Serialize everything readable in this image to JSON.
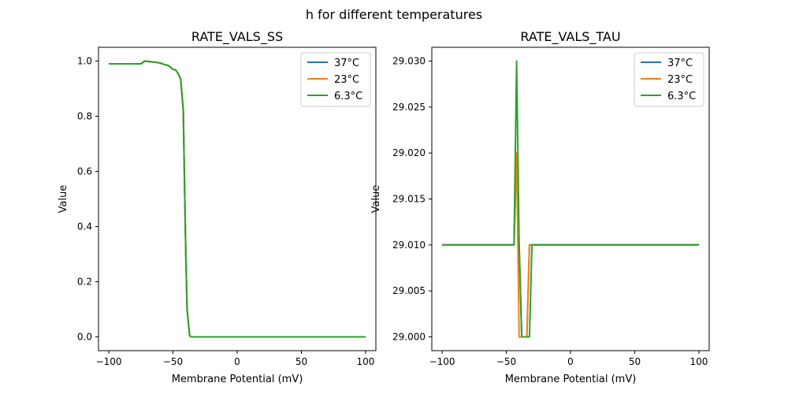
{
  "figure_title": "h for different temperatures",
  "colors": {
    "s37": "#1f77b4",
    "s23": "#ff7f0e",
    "s63": "#2ca02c"
  },
  "chart_data": [
    {
      "type": "line",
      "title": "RATE_VALS_SS",
      "xlabel": "Membrane Potential (mV)",
      "ylabel": "Value",
      "xlim": [
        -108,
        108
      ],
      "ylim": [
        -0.05,
        1.05
      ],
      "xticks": [
        -100,
        -50,
        0,
        50,
        100
      ],
      "xtick_labels": [
        "−100",
        "−50",
        "0",
        "50",
        "100"
      ],
      "yticks": [
        0.0,
        0.2,
        0.4,
        0.6,
        0.8,
        1.0
      ],
      "ytick_labels": [
        "0.0",
        "0.2",
        "0.4",
        "0.6",
        "0.8",
        "1.0"
      ],
      "legend": "top-right",
      "series": [
        {
          "name": "37°C",
          "x": [
            -100,
            -75,
            -72,
            -68,
            -64,
            -60,
            -58,
            -56,
            -54,
            -52,
            -50,
            -48,
            -46,
            -44,
            -42,
            -41,
            -40,
            -39,
            -38,
            -37,
            -36,
            -35,
            -34,
            -30,
            0,
            50,
            100
          ],
          "y": [
            0.99,
            0.99,
            1.0,
            0.998,
            0.996,
            0.993,
            0.99,
            0.986,
            0.985,
            0.978,
            0.97,
            0.968,
            0.955,
            0.935,
            0.82,
            0.55,
            0.3,
            0.1,
            0.05,
            0.005,
            0.0,
            0.0,
            0.0,
            0.0,
            0.0,
            0.0,
            0.0
          ]
        },
        {
          "name": "23°C",
          "x": [
            -100,
            -75,
            -72,
            -68,
            -64,
            -60,
            -58,
            -56,
            -54,
            -52,
            -50,
            -48,
            -46,
            -44,
            -42,
            -41,
            -40,
            -39,
            -38,
            -37,
            -36,
            -35,
            -34,
            -30,
            0,
            50,
            100
          ],
          "y": [
            0.99,
            0.99,
            1.0,
            0.998,
            0.996,
            0.993,
            0.99,
            0.986,
            0.985,
            0.978,
            0.97,
            0.968,
            0.955,
            0.935,
            0.82,
            0.55,
            0.3,
            0.1,
            0.05,
            0.005,
            0.0,
            0.0,
            0.0,
            0.0,
            0.0,
            0.0,
            0.0
          ]
        },
        {
          "name": "6.3°C",
          "x": [
            -100,
            -75,
            -72,
            -68,
            -64,
            -60,
            -58,
            -56,
            -54,
            -52,
            -50,
            -48,
            -46,
            -44,
            -42,
            -41,
            -40,
            -39,
            -38,
            -37,
            -36,
            -35,
            -34,
            -30,
            0,
            50,
            100
          ],
          "y": [
            0.99,
            0.99,
            1.0,
            0.998,
            0.996,
            0.993,
            0.99,
            0.986,
            0.985,
            0.978,
            0.97,
            0.968,
            0.955,
            0.935,
            0.82,
            0.55,
            0.3,
            0.1,
            0.05,
            0.005,
            0.0,
            0.0,
            0.0,
            0.0,
            0.0,
            0.0,
            0.0
          ]
        }
      ]
    },
    {
      "type": "line",
      "title": "RATE_VALS_TAU",
      "xlabel": "Membrane Potential (mV)",
      "ylabel": "Value",
      "xlim": [
        -108,
        108
      ],
      "ylim": [
        28.9985,
        29.0315
      ],
      "xticks": [
        -100,
        -50,
        0,
        50,
        100
      ],
      "xtick_labels": [
        "−100",
        "−50",
        "0",
        "50",
        "100"
      ],
      "yticks": [
        29.0,
        29.005,
        29.01,
        29.015,
        29.02,
        29.025,
        29.03
      ],
      "ytick_labels": [
        "29.000",
        "29.005",
        "29.010",
        "29.015",
        "29.020",
        "29.025",
        "29.030"
      ],
      "legend": "top-right",
      "series": [
        {
          "name": "37°C",
          "x": [
            -100,
            -44,
            -42,
            -40,
            -38,
            -34,
            -32,
            -30,
            100
          ],
          "y": [
            29.01,
            29.01,
            29.02,
            29.01,
            29.0,
            29.0,
            29.01,
            29.01,
            29.01
          ]
        },
        {
          "name": "23°C",
          "x": [
            -100,
            -44,
            -42,
            -40,
            -38,
            -34,
            -32,
            -30,
            100
          ],
          "y": [
            29.01,
            29.01,
            29.02,
            29.0,
            29.0,
            29.0,
            29.01,
            29.01,
            29.01
          ]
        },
        {
          "name": "6.3°C",
          "x": [
            -100,
            -44,
            -42,
            -40,
            -38,
            -34,
            -32,
            -30,
            100
          ],
          "y": [
            29.01,
            29.01,
            29.03,
            29.01,
            29.0,
            29.0,
            29.0,
            29.01,
            29.01
          ]
        }
      ]
    }
  ]
}
